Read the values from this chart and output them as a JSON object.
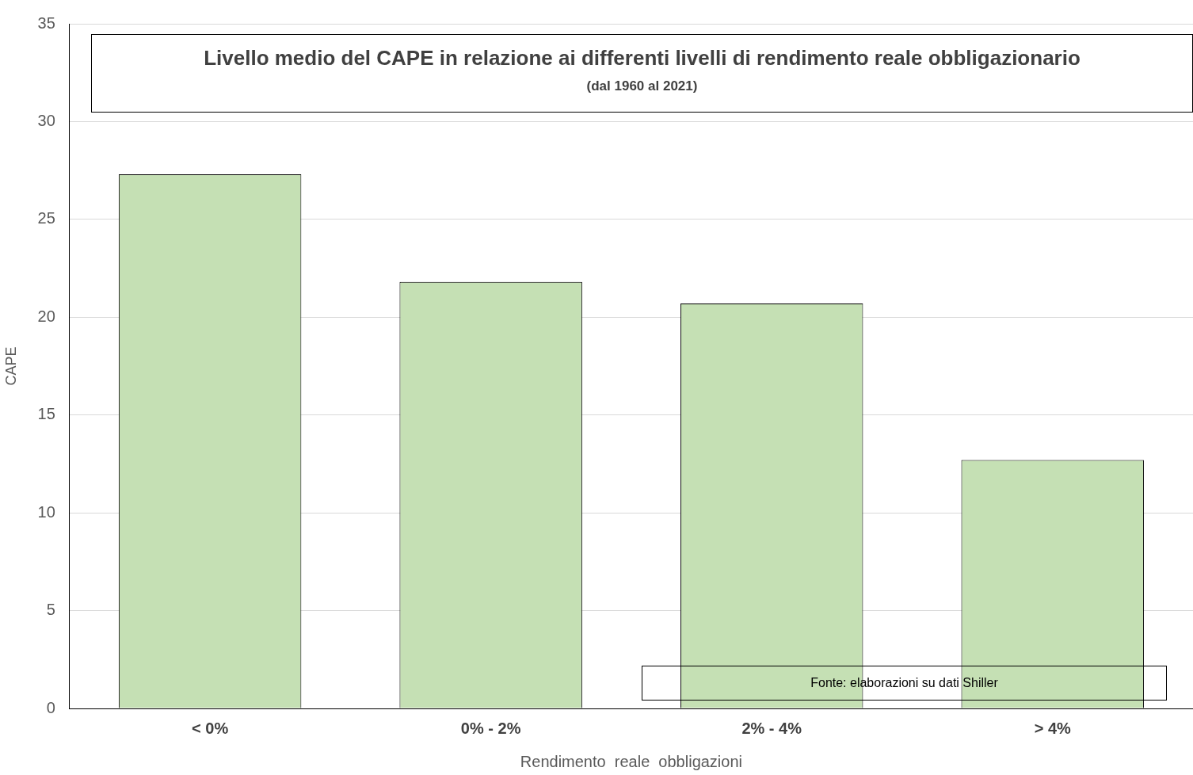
{
  "chart_data": {
    "type": "bar",
    "title": "Livello medio del CAPE in relazione ai differenti livelli di rendimento reale obbligazionario",
    "subtitle": "(dal 1960 al 2021)",
    "xlabel": "Rendimento  reale  obbligazioni",
    "ylabel": "CAPE",
    "categories": [
      "< 0%",
      "0% - 2%",
      "2% - 4%",
      "> 4%"
    ],
    "values": [
      27.3,
      21.8,
      20.7,
      12.7
    ],
    "color": "#c5e0b4",
    "ylim": [
      0,
      35
    ],
    "yticks": [
      0,
      5,
      10,
      15,
      20,
      25,
      30,
      35
    ],
    "grid": "y",
    "annotations": [
      "Fonte: elaborazioni su dati Shiller"
    ]
  }
}
